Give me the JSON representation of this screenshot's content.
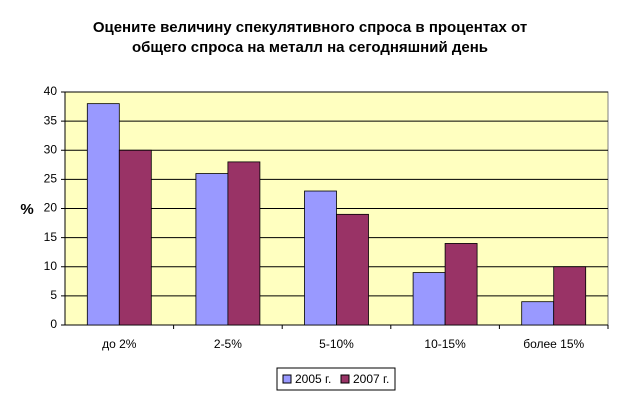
{
  "chart_data": {
    "type": "bar",
    "title": [
      "Оцените величину спекулятивного спроса в процентах от",
      "общего спроса на металл на сегодняшний день"
    ],
    "y_label": "%",
    "categories": [
      "до 2%",
      "2-5%",
      "5-10%",
      "10-15%",
      "более 15%"
    ],
    "series": [
      {
        "name": "2005 г.",
        "color": "#9999ff",
        "values": [
          38,
          26,
          23,
          9,
          4
        ]
      },
      {
        "name": "2007 г.",
        "color": "#993366",
        "values": [
          30,
          28,
          19,
          14,
          10
        ]
      }
    ],
    "ylim": [
      0,
      40
    ],
    "yticks": [
      0,
      5,
      10,
      15,
      20,
      25,
      30,
      35,
      40
    ],
    "grid": true,
    "legend": "bottom"
  }
}
